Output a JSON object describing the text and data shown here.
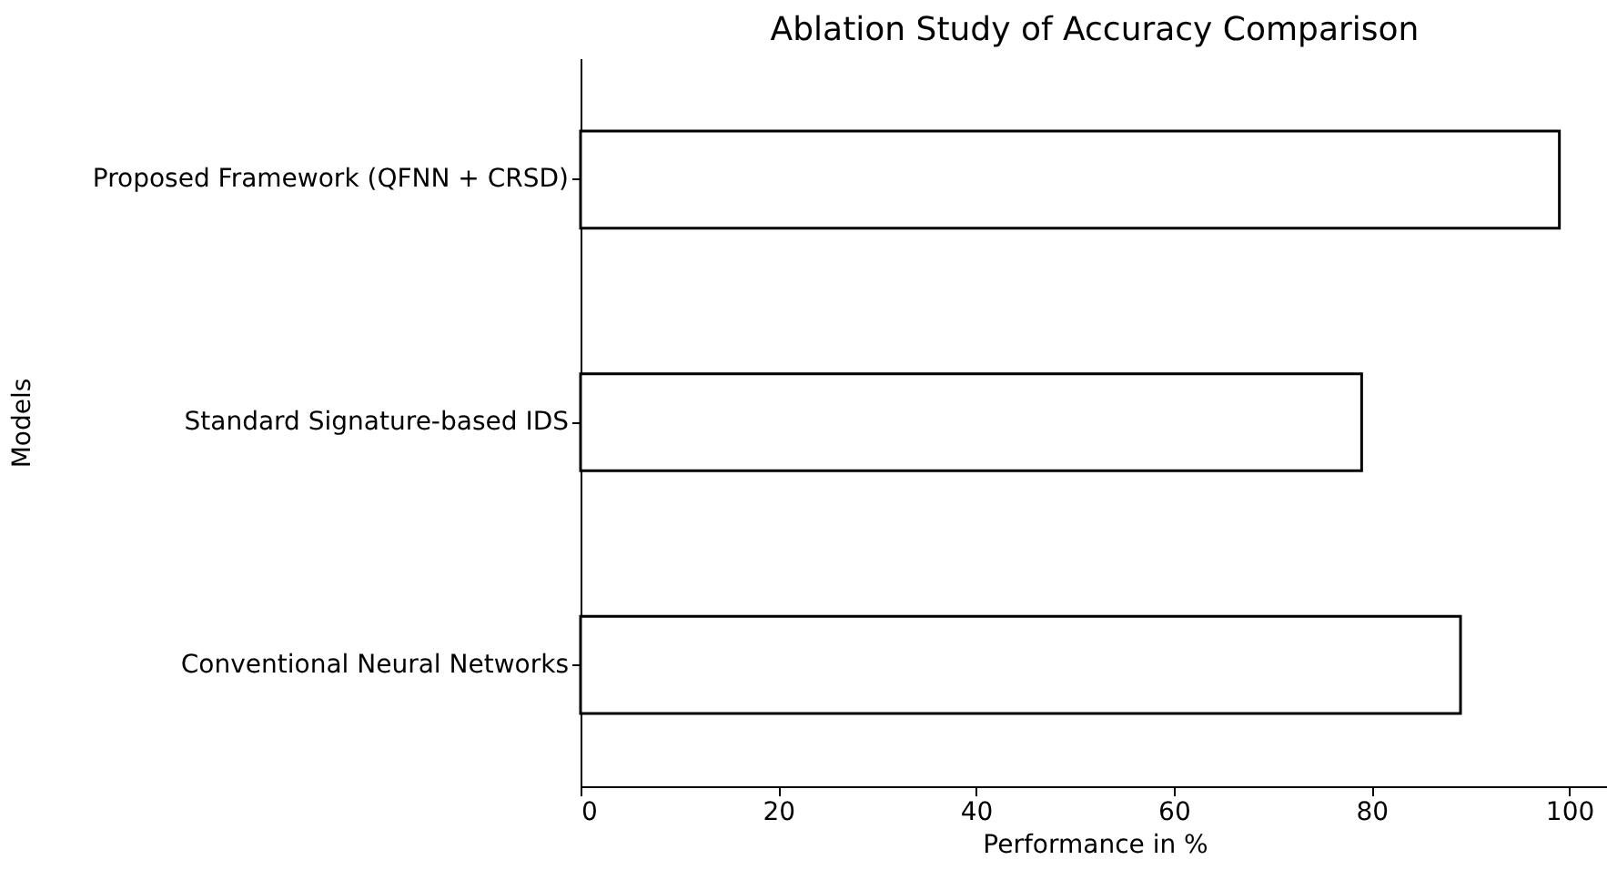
{
  "chart_data": {
    "type": "bar",
    "orientation": "horizontal",
    "title": "Ablation Study of Accuracy Comparison",
    "xlabel": "Performance in %",
    "ylabel": "Models",
    "categories": [
      "Proposed Framework (QFNN + CRSD)",
      "Standard Signature-based IDS",
      "Conventional Neural Networks"
    ],
    "values": [
      99,
      79,
      89
    ],
    "color": "#ffffff",
    "xlim": [
      0,
      104
    ],
    "xticks": [
      0,
      20,
      40,
      60,
      80,
      100
    ],
    "grid": false
  }
}
